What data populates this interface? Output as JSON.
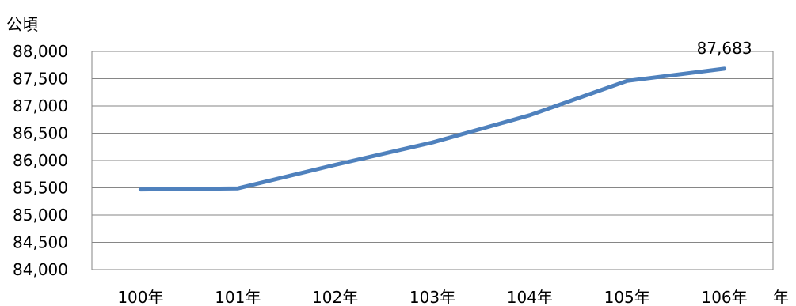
{
  "chart_data": {
    "type": "line",
    "ylabel": "公頃",
    "xlabel": "年",
    "categories": [
      "100年",
      "101年",
      "102年",
      "103年",
      "104年",
      "105年",
      "106年"
    ],
    "series": [
      {
        "values": [
          85470,
          85490,
          85920,
          86330,
          86830,
          87460,
          87683
        ]
      }
    ],
    "ylim": [
      84000,
      88000
    ],
    "yticks": [
      "84,000",
      "84,500",
      "85,000",
      "85,500",
      "86,000",
      "86,500",
      "87,000",
      "87,500",
      "88,000"
    ],
    "data_labels": [
      {
        "index": 6,
        "text": "87,683"
      }
    ],
    "grid": true,
    "line_color": "#4F81BD"
  }
}
